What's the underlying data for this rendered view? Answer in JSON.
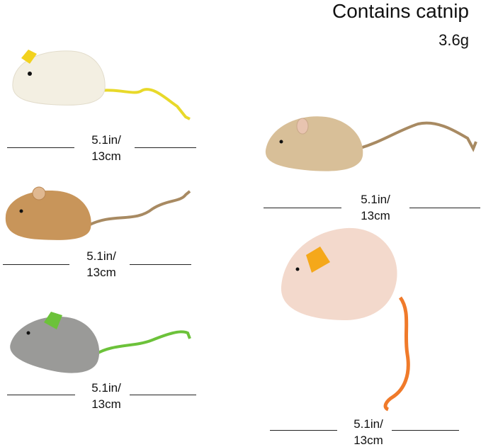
{
  "header": {
    "title": "Contains catnip",
    "weight": "3.6g"
  },
  "measurements": [
    {
      "line1": "5.1in/",
      "line2": "13cm"
    },
    {
      "line1": "5.1in/",
      "line2": "13cm"
    },
    {
      "line1": "5.1in/",
      "line2": "13cm"
    },
    {
      "line1": "5.1in/",
      "line2": "13cm"
    },
    {
      "line1": "5.1in/",
      "line2": "13cm"
    }
  ],
  "colors": {
    "white_mouse": "#f3efe2",
    "tan_mouse": "#d8bf98",
    "brown_mouse": "#c8955a",
    "grey_mouse": "#9a9a98",
    "pink_mouse": "#f3d9cc",
    "yellow_tail": "#e8d92a",
    "green_tail": "#6cc23a",
    "orange_tail": "#f07a2a",
    "jute_tail": "#a88a62"
  }
}
